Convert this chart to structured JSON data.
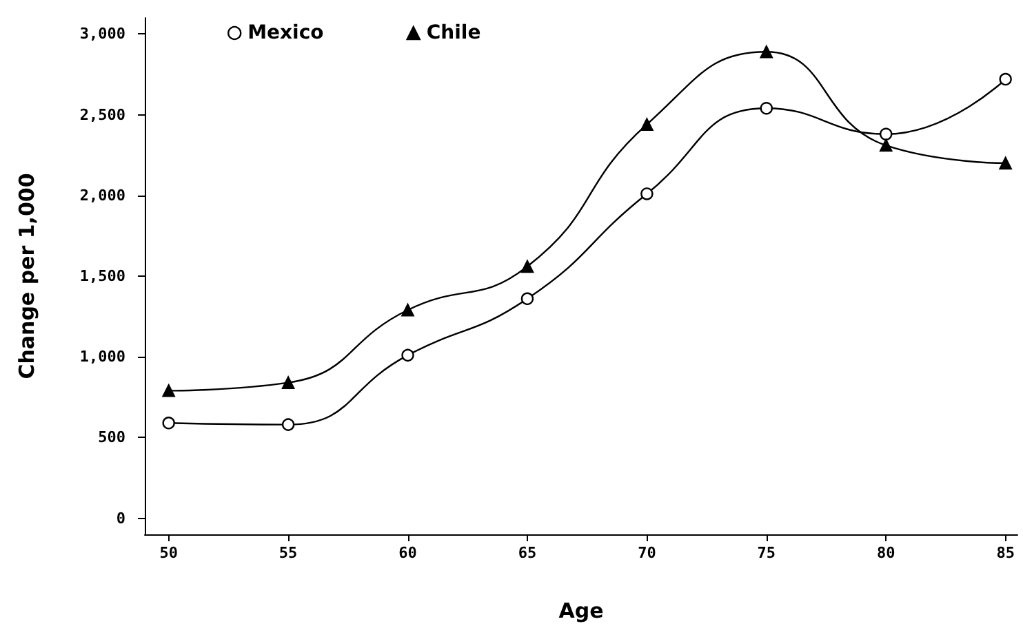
{
  "chart_data": {
    "type": "line",
    "xlabel": "Age",
    "ylabel": "Change per 1,000",
    "x": [
      50,
      55,
      60,
      65,
      70,
      75,
      80,
      85
    ],
    "series": [
      {
        "name": "Mexico",
        "color": "#000000",
        "marker": "circle",
        "values": [
          590,
          580,
          1010,
          1360,
          2010,
          2540,
          2380,
          2720
        ]
      },
      {
        "name": "Chile",
        "color": "#000000",
        "marker": "triangle",
        "values": [
          790,
          840,
          1290,
          1560,
          2440,
          2890,
          2310,
          2200
        ]
      }
    ],
    "xlim": [
      49,
      85.5
    ],
    "xticks": [
      50,
      55,
      60,
      65,
      70,
      75,
      80,
      85
    ],
    "ylim": [
      -100,
      3100
    ],
    "yticks": [
      0,
      500,
      {
        "value": 1000,
        "label": "1,000"
      },
      {
        "value": 1500,
        "label": "1,500"
      },
      {
        "value": 2000,
        "label": "2,000"
      },
      {
        "value": 2500,
        "label": "2,500"
      },
      {
        "value": 3000,
        "label": "3,000"
      }
    ],
    "grid": false,
    "legend": "top left",
    "line_style": "solid"
  }
}
